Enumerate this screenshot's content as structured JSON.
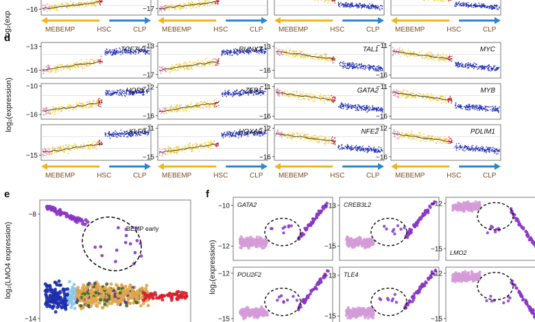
{
  "colors": {
    "pink": "#e58aa6",
    "yellow": "#f2d53c",
    "orange": "#e8b24a",
    "blue": "#1f2fb8",
    "red": "#d81e2b",
    "purple": "#8a35c8",
    "lilac": "#d59ad8",
    "darkblue": "#1a2da0",
    "lightblue": "#8fc7e8",
    "gold": "#e0a64b",
    "arrowYellow": "#f1b51c",
    "arrowBlue": "#2a86d0",
    "mebempText": "#7b4a1e",
    "black": "#111111"
  },
  "labels": {
    "panel_d": "d",
    "panel_e": "e",
    "panel_f": "f",
    "mebemp": "MEBEMP",
    "hsc": "HSC",
    "clp": "CLP",
    "ylabel_d": "log₂(expression)",
    "ylabel_top": "log₂(exp",
    "ylabel_e": "log₂(LMO4 expression)",
    "ylabel_f": "log₂(expression)",
    "bemp_early": "BEMP early"
  },
  "chart_data": [
    {
      "type": "scatter",
      "panel": "c",
      "partial": true,
      "ylabel": "log₂(exp",
      "rows": [
        {
          "ticks": [
            -16
          ],
          "genes": [
            "",
            "",
            "",
            ""
          ],
          "tick_col1": [
            -16
          ],
          "tick_col2": [
            -17
          ],
          "tick_col3": [],
          "tick_col4": []
        }
      ],
      "axis_groups": [
        "MEBEMP",
        "HSC",
        "CLP"
      ]
    },
    {
      "type": "scatter",
      "panel": "d",
      "ylabel": "log₂(expression)",
      "axis_groups": [
        "MEBEMP",
        "HSC",
        "CLP"
      ],
      "genes": [
        {
          "name": "TCF7L2",
          "col": 0,
          "row": 0,
          "ticks": [
            -13,
            -16
          ],
          "trend": "up",
          "ymin": -17,
          "ymax": -12.5
        },
        {
          "name": "HOPX",
          "col": 0,
          "row": 1,
          "ticks": [
            -10,
            -16
          ],
          "trend": "up",
          "ymin": -17,
          "ymax": -9.5
        },
        {
          "name": "KLF6",
          "col": 0,
          "row": 2,
          "ticks": [
            -15
          ],
          "trend": "up",
          "ymin": -15.5,
          "ymax": -12
        },
        {
          "name": "RUNX3",
          "col": 1,
          "row": 0,
          "ticks": [
            -13,
            -17
          ],
          "trend": "up",
          "ymin": -17.5,
          "ymax": -12.5
        },
        {
          "name": "ZEB1",
          "col": 1,
          "row": 1,
          "ticks": [
            -12,
            -16
          ],
          "trend": "up",
          "ymin": -16.5,
          "ymax": -11.5
        },
        {
          "name": "HOXA9",
          "col": 1,
          "row": 2,
          "ticks": [
            -11,
            -15
          ],
          "trend": "up",
          "ymin": -15.5,
          "ymax": -10.5
        },
        {
          "name": "TAL1",
          "col": 2,
          "row": 0,
          "ticks": [
            -13,
            -16
          ],
          "trend": "down",
          "ymin": -17,
          "ymax": -12.5
        },
        {
          "name": "GATA2",
          "col": 2,
          "row": 1,
          "ticks": [
            -11,
            -16
          ],
          "trend": "down",
          "ymin": -16.5,
          "ymax": -10.5
        },
        {
          "name": "NFE2",
          "col": 2,
          "row": 2,
          "ticks": [
            -12,
            -16
          ],
          "trend": "down",
          "ymin": -16.5,
          "ymax": -11.5
        },
        {
          "name": "MYC",
          "col": 3,
          "row": 0,
          "ticks": [
            -11,
            -16
          ],
          "trend": "down",
          "ymin": -16.5,
          "ymax": -10.5
        },
        {
          "name": "MYB",
          "col": 3,
          "row": 1,
          "ticks": [
            -11,
            -16
          ],
          "trend": "down",
          "ymin": -16.5,
          "ymax": -10.5
        },
        {
          "name": "PDLIM1",
          "col": 3,
          "row": 2,
          "ticks": [
            -12,
            -16
          ],
          "trend": "down",
          "ymin": -16.5,
          "ymax": -11.5
        }
      ]
    },
    {
      "type": "scatter",
      "panel": "e",
      "ylabel": "log₂(LMO4 expression)",
      "y_ticks": [
        -8,
        -14
      ],
      "ylim": [
        -14.2,
        -7.2
      ],
      "annotations": [
        "BEMP early"
      ]
    },
    {
      "type": "scatter",
      "panel": "f",
      "ylabel": "log₂(expression)",
      "genes": [
        {
          "name": "GATA2",
          "ticks": [
            -10,
            -12
          ],
          "label_pos": "top-left",
          "trend": "up"
        },
        {
          "name": "CREB3L2",
          "ticks": [
            -13,
            -15
          ],
          "label_pos": "top-left",
          "trend": "up"
        },
        {
          "name": "LMO2",
          "ticks": [
            -12,
            -15
          ],
          "label_pos": "bottom-left",
          "trend": "down"
        },
        {
          "name": "POU2F2",
          "ticks": [
            -12,
            -15
          ],
          "label_pos": "top-left",
          "trend": "up"
        },
        {
          "name": "TLE4",
          "ticks": [
            -13,
            -15
          ],
          "label_pos": "top-left",
          "trend": "up"
        },
        {
          "name": "",
          "ticks": [
            -12,
            -15
          ],
          "label_pos": "top-left",
          "trend": "down"
        }
      ]
    }
  ]
}
